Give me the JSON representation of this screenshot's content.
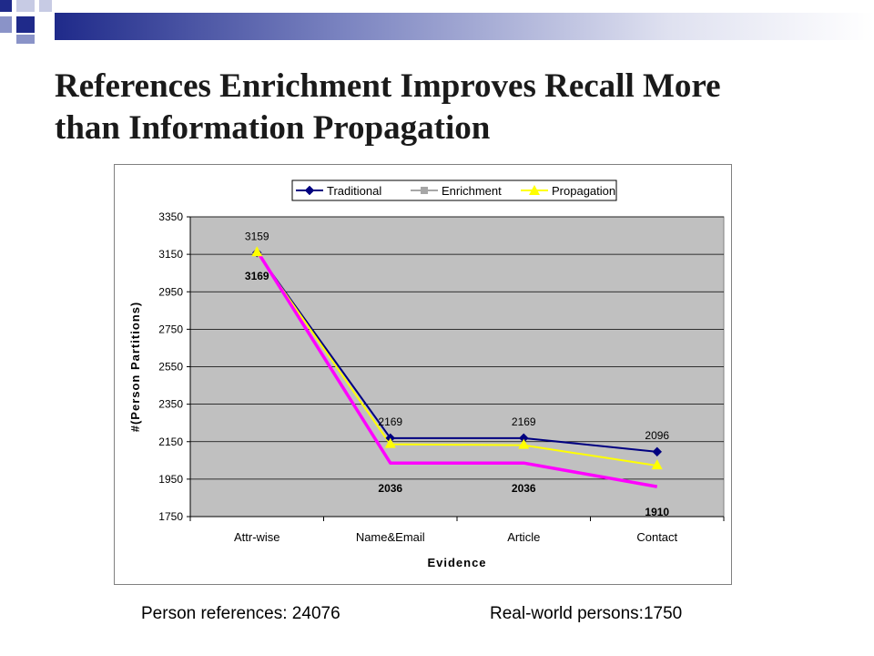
{
  "slide": {
    "title_line1": "References Enrichment Improves Recall More",
    "title_line2": "than Information Propagation",
    "footer_left": "Person references: 24076",
    "footer_right": "Real-world persons:1750",
    "decoration_colors": [
      "#1f2a8a",
      "#8a93c8",
      "#c7cbe4"
    ]
  },
  "chart_data": {
    "type": "line",
    "categories": [
      "Attr-wise",
      "Name&Email",
      "Article",
      "Contact"
    ],
    "xlabel": "Evidence",
    "ylabel": "#(Person Partitions)",
    "ylim": [
      1750,
      3350
    ],
    "yticks": [
      1750,
      1950,
      2150,
      2350,
      2550,
      2750,
      2950,
      3150,
      3350
    ],
    "grid": true,
    "legend_position": "top",
    "plot_background": "#c0c0c0",
    "series": [
      {
        "name": "Traditional",
        "values": [
          3159,
          2169,
          2169,
          2096
        ],
        "color": "#000080",
        "marker": "diamond"
      },
      {
        "name": "Enrichment",
        "values": [
          3169,
          2036,
          2036,
          1910
        ],
        "color": "#ff00ff",
        "legend_color": "#a6a6a6",
        "marker": "square"
      },
      {
        "name": "Propagation",
        "values": [
          3159,
          2136,
          2131,
          2022
        ],
        "color": "#ffff00",
        "marker": "triangle"
      }
    ],
    "data_labels": [
      {
        "text": "3159",
        "category": "Attr-wise",
        "value": 3159,
        "style": "normal",
        "place": "above"
      },
      {
        "text": "3169",
        "category": "Attr-wise",
        "value": 3169,
        "style": "bold",
        "place": "below"
      },
      {
        "text": "2169",
        "category": "Name&Email",
        "value": 2169,
        "style": "normal",
        "place": "above"
      },
      {
        "text": "2169",
        "category": "Article",
        "value": 2169,
        "style": "normal",
        "place": "above"
      },
      {
        "text": "2096",
        "category": "Contact",
        "value": 2096,
        "style": "normal",
        "place": "above"
      },
      {
        "text": "2036",
        "category": "Name&Email",
        "value": 2036,
        "style": "bold",
        "place": "below"
      },
      {
        "text": "2036",
        "category": "Article",
        "value": 2036,
        "style": "bold",
        "place": "below"
      },
      {
        "text": "1910",
        "category": "Contact",
        "value": 1910,
        "style": "bold",
        "place": "below"
      }
    ]
  }
}
